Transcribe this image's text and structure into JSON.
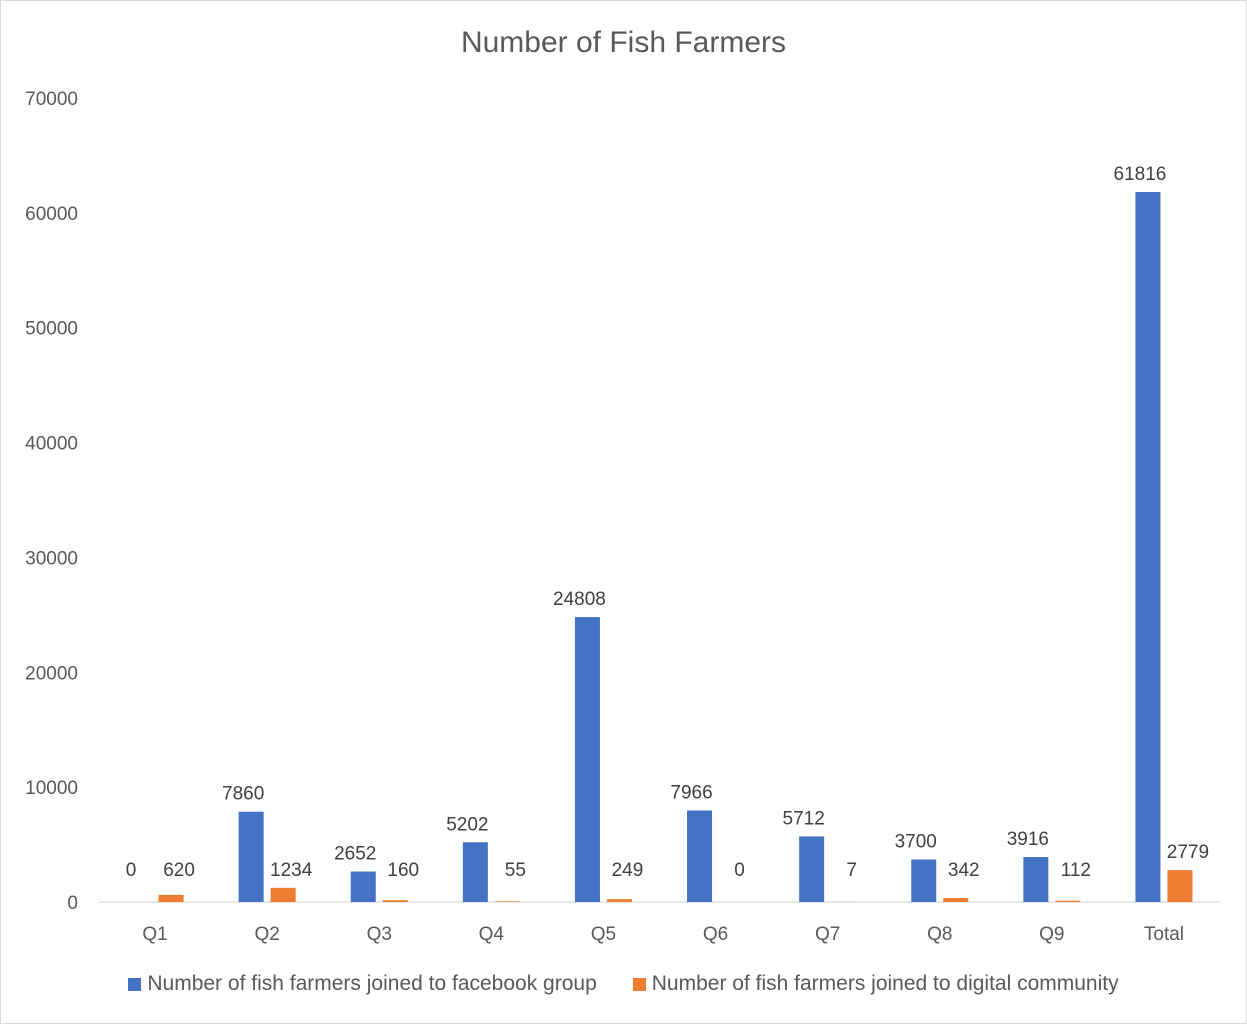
{
  "chart_data": {
    "type": "bar",
    "title": "Number of Fish Farmers",
    "xlabel": "",
    "ylabel": "",
    "categories": [
      "Q1",
      "Q2",
      "Q3",
      "Q4",
      "Q5",
      "Q6",
      "Q7",
      "Q8",
      "Q9",
      "Total"
    ],
    "series": [
      {
        "name": "Number of fish farmers joined to facebook group",
        "color": "#4472c4",
        "values": [
          0,
          7860,
          2652,
          5202,
          24808,
          7966,
          5712,
          3700,
          3916,
          61816
        ]
      },
      {
        "name": "Number of fish farmers joined to digital community",
        "color": "#ed7d31",
        "values": [
          620,
          1234,
          160,
          55,
          249,
          0,
          7,
          342,
          112,
          2779
        ]
      }
    ],
    "ylim": [
      0,
      70000
    ],
    "yticks": [
      0,
      10000,
      20000,
      30000,
      40000,
      50000,
      60000,
      70000
    ],
    "grid": false,
    "legend": "bottom",
    "data_labels": true
  }
}
